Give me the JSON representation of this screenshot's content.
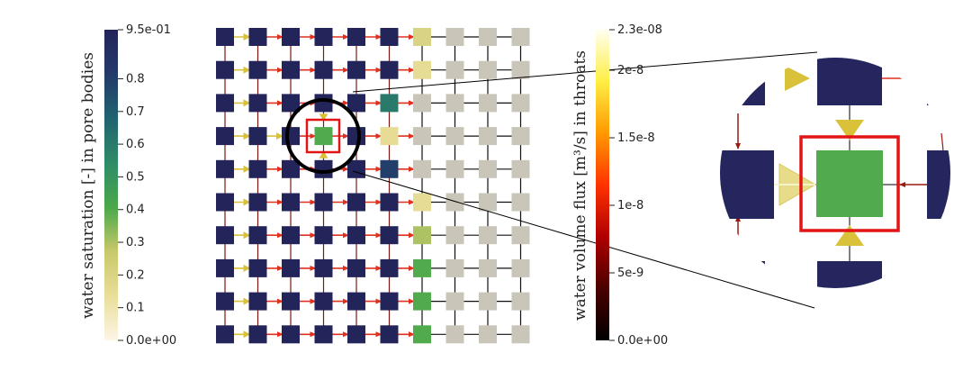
{
  "colorbars": {
    "saturation": {
      "title": "water saturation [-] in pore bodies",
      "ticks": [
        "9.5e-01",
        "0.8",
        "0.7",
        "0.6",
        "0.5",
        "0.4",
        "0.3",
        "0.2",
        "0.1",
        "0.0e+00"
      ],
      "tick_values": [
        0.95,
        0.8,
        0.7,
        0.6,
        0.5,
        0.4,
        0.3,
        0.2,
        0.1,
        0.0
      ],
      "range": [
        0.0,
        0.95
      ],
      "colors": [
        "#fdf5e6",
        "#e9de9a",
        "#c8c96a",
        "#4aa84a",
        "#2f8b68",
        "#21636f",
        "#233a6a",
        "#23245a"
      ]
    },
    "flux": {
      "title": "water volume flux [m³/s] in throats",
      "ticks": [
        "2.3e-08",
        "2e-8",
        "1.5e-8",
        "1e-8",
        "5e-9",
        "0.0e+00"
      ],
      "tick_values": [
        2.3e-08,
        2e-08,
        1.5e-08,
        1e-08,
        5e-09,
        0.0
      ],
      "range": [
        0.0,
        2.3e-08
      ],
      "colors": [
        "#000000",
        "#4a0000",
        "#b00000",
        "#ff3300",
        "#ff9900",
        "#ffee44",
        "#fffff0"
      ]
    }
  },
  "network": {
    "rows": 10,
    "cols": 10,
    "highlight": {
      "row": 3,
      "col": 3
    },
    "saturation_grid": [
      [
        0.95,
        0.95,
        0.95,
        0.95,
        0.95,
        0.95,
        0.2,
        0.05,
        0.05,
        0.05
      ],
      [
        0.95,
        0.95,
        0.95,
        0.95,
        0.95,
        0.95,
        0.15,
        0.05,
        0.05,
        0.05
      ],
      [
        0.95,
        0.95,
        0.95,
        0.95,
        0.95,
        0.6,
        0.05,
        0.05,
        0.05,
        0.05
      ],
      [
        0.95,
        0.95,
        0.95,
        0.4,
        0.95,
        0.15,
        0.05,
        0.05,
        0.05,
        0.05
      ],
      [
        0.95,
        0.95,
        0.95,
        0.95,
        0.95,
        0.8,
        0.05,
        0.05,
        0.05,
        0.05
      ],
      [
        0.95,
        0.95,
        0.95,
        0.95,
        0.95,
        0.95,
        0.15,
        0.05,
        0.05,
        0.05
      ],
      [
        0.95,
        0.95,
        0.95,
        0.95,
        0.95,
        0.95,
        0.3,
        0.05,
        0.05,
        0.05
      ],
      [
        0.95,
        0.95,
        0.95,
        0.95,
        0.95,
        0.95,
        0.4,
        0.05,
        0.05,
        0.05
      ],
      [
        0.95,
        0.95,
        0.95,
        0.95,
        0.95,
        0.95,
        0.4,
        0.05,
        0.05,
        0.05
      ],
      [
        0.95,
        0.95,
        0.95,
        0.95,
        0.95,
        0.95,
        0.4,
        0.05,
        0.05,
        0.05
      ]
    ]
  },
  "zoom_inset": {
    "center_saturation": 0.4
  }
}
